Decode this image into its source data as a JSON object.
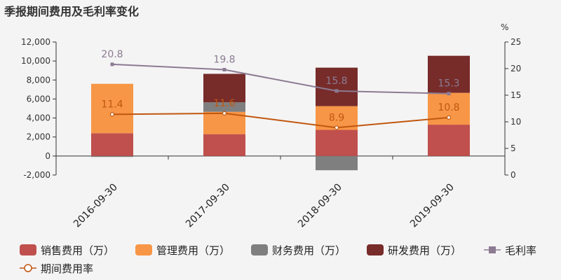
{
  "chart_data": {
    "type": "bar",
    "title": "季报期间费用及毛利率变化",
    "categories": [
      "2016-09-30",
      "2017-09-30",
      "2018-09-30",
      "2019-09-30"
    ],
    "y_left": {
      "min": -2000,
      "max": 12000,
      "step": 2000,
      "tick_labels": [
        "-2,000",
        "0",
        "2,000",
        "4,000",
        "6,000",
        "8,000",
        "10,000",
        "12,000"
      ]
    },
    "y_right": {
      "min": 0,
      "max": 25,
      "step": 5,
      "unit": "%",
      "tick_labels": [
        "0",
        "5",
        "10",
        "15",
        "20",
        "25"
      ]
    },
    "series": [
      {
        "name": "销售费用（万）",
        "type": "bar",
        "stack": true,
        "color": "#c0504d",
        "values": [
          2400,
          2300,
          2750,
          3300
        ]
      },
      {
        "name": "管理费用（万）",
        "type": "bar",
        "stack": true,
        "color": "#f79646",
        "values": [
          5200,
          2350,
          2500,
          3350
        ]
      },
      {
        "name": "财务费用（万）",
        "type": "bar",
        "stack": true,
        "color": "#7f7f7f",
        "values": [
          -100,
          1000,
          -1500,
          0
        ]
      },
      {
        "name": "研发费用（万）",
        "type": "bar",
        "stack": true,
        "color": "#772c2a",
        "values": [
          0,
          3000,
          4050,
          3900
        ]
      },
      {
        "name": "毛利率",
        "type": "line",
        "axis": "right",
        "color": "#8c7b92",
        "marker": "square",
        "values": [
          20.8,
          19.8,
          15.8,
          15.3
        ],
        "labels": [
          "20.8",
          "19.8",
          "15.8",
          "15.3"
        ]
      },
      {
        "name": "期间费用率",
        "type": "line",
        "axis": "right",
        "color": "#c0570f",
        "marker": "circle",
        "values": [
          11.4,
          11.6,
          8.9,
          10.8
        ],
        "labels": [
          "11.4",
          "11.6",
          "8.9",
          "10.8"
        ]
      }
    ],
    "legend_position": "bottom",
    "grid": false
  }
}
